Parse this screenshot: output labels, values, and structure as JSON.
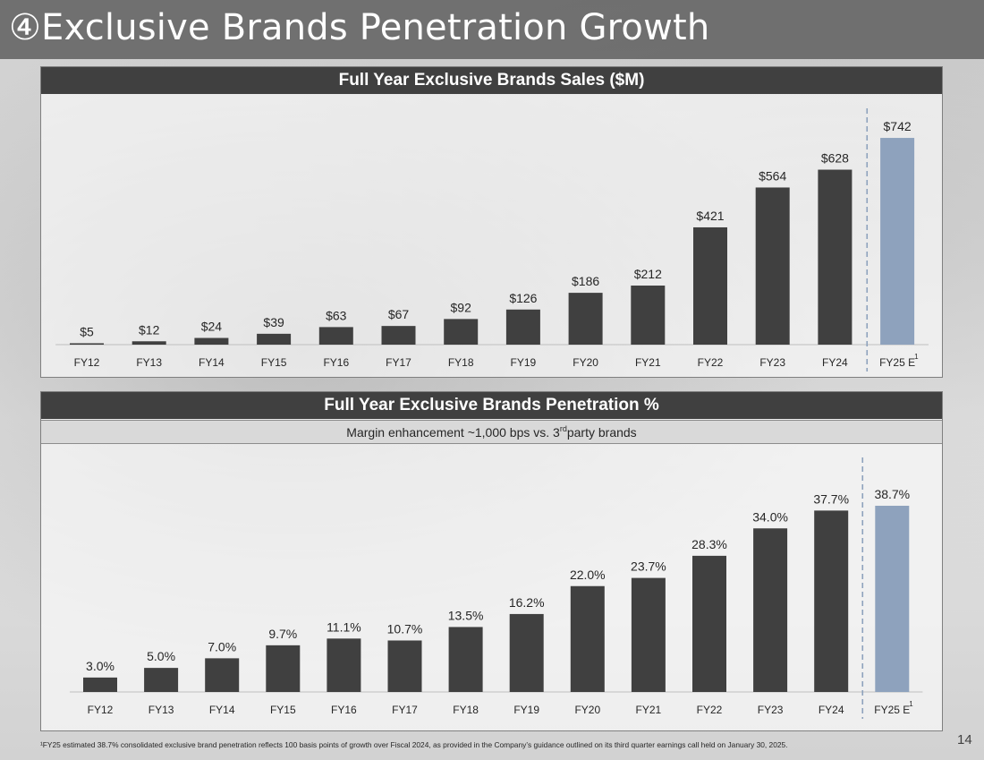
{
  "page": {
    "title": "④Exclusive Brands Penetration Growth",
    "page_number": "14",
    "footnote": "¹FY25 estimated 38.7% consolidated exclusive brand penetration reflects 100 basis points of growth over Fiscal 2024, as provided in the Company’s guidance outlined on its third quarter earnings call held on January 30, 2025."
  },
  "colors": {
    "bar_actual": "#404040",
    "bar_estimate": "#8ea2bd",
    "header_bg": "#404040",
    "divider": "#8ea2bd"
  },
  "chart_data": [
    {
      "type": "bar",
      "title": "Full Year Exclusive Brands Sales ($M)",
      "categories": [
        "FY12",
        "FY13",
        "FY14",
        "FY15",
        "FY16",
        "FY17",
        "FY18",
        "FY19",
        "FY20",
        "FY21",
        "FY22",
        "FY23",
        "FY24",
        "FY25 E"
      ],
      "values": [
        5,
        12,
        24,
        39,
        63,
        67,
        92,
        126,
        186,
        212,
        421,
        564,
        628,
        742
      ],
      "labels": [
        "$5",
        "$12",
        "$24",
        "$39",
        "$63",
        "$67",
        "$92",
        "$126",
        "$186",
        "$212",
        "$421",
        "$564",
        "$628",
        "$742"
      ],
      "estimate_index": 13,
      "estimate_footnote_mark": "1",
      "ylim": [
        0,
        800
      ],
      "xlabel": "",
      "ylabel": ""
    },
    {
      "type": "bar",
      "title": "Full Year Exclusive Brands Penetration %",
      "subtitle": {
        "before": "Margin enhancement ~1,000 bps vs. 3",
        "sup": "rd",
        "after": " party brands"
      },
      "categories": [
        "FY12",
        "FY13",
        "FY14",
        "FY15",
        "FY16",
        "FY17",
        "FY18",
        "FY19",
        "FY20",
        "FY21",
        "FY22",
        "FY23",
        "FY24",
        "FY25 E"
      ],
      "values": [
        3.0,
        5.0,
        7.0,
        9.7,
        11.1,
        10.7,
        13.5,
        16.2,
        22.0,
        23.7,
        28.3,
        34.0,
        37.7,
        38.7
      ],
      "labels": [
        "3.0%",
        "5.0%",
        "7.0%",
        "9.7%",
        "11.1%",
        "10.7%",
        "13.5%",
        "16.2%",
        "22.0%",
        "23.7%",
        "28.3%",
        "34.0%",
        "37.7%",
        "38.7%"
      ],
      "estimate_index": 13,
      "estimate_footnote_mark": "1",
      "ylim": [
        0,
        40
      ],
      "xlabel": "",
      "ylabel": ""
    }
  ]
}
